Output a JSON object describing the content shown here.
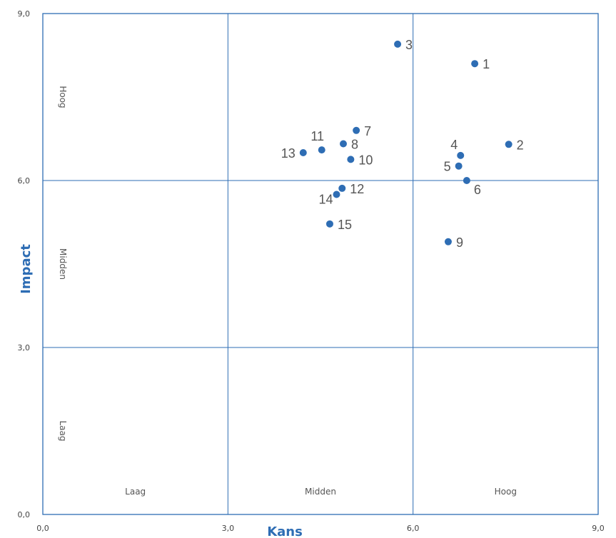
{
  "chart_data": {
    "type": "scatter",
    "xlabel": "Kans",
    "ylabel": "Impact",
    "xlim": [
      0,
      9
    ],
    "ylim": [
      0,
      9
    ],
    "x_ticks": [
      {
        "value": 0,
        "label": "0,0"
      },
      {
        "value": 3,
        "label": "3,0"
      },
      {
        "value": 6,
        "label": "6,0"
      },
      {
        "value": 9,
        "label": "9,0"
      }
    ],
    "y_ticks": [
      {
        "value": 0,
        "label": "0,0"
      },
      {
        "value": 3,
        "label": "3,0"
      },
      {
        "value": 6,
        "label": "6,0"
      },
      {
        "value": 9,
        "label": "9,0"
      }
    ],
    "grid": true,
    "x_zone_labels": [
      {
        "center": 1.5,
        "label": "Laag"
      },
      {
        "center": 4.5,
        "label": "Midden"
      },
      {
        "center": 7.5,
        "label": "Hoog"
      }
    ],
    "y_zone_labels": [
      {
        "center": 1.5,
        "label": "Laag"
      },
      {
        "center": 4.5,
        "label": "Midden"
      },
      {
        "center": 7.5,
        "label": "Hoog"
      }
    ],
    "points": [
      {
        "label": "1",
        "x": 7.0,
        "y": 8.1,
        "label_pos": "right"
      },
      {
        "label": "2",
        "x": 7.55,
        "y": 6.65,
        "label_pos": "right"
      },
      {
        "label": "3",
        "x": 5.75,
        "y": 8.45,
        "label_pos": "right"
      },
      {
        "label": "4",
        "x": 6.77,
        "y": 6.45,
        "label_pos": "above-left"
      },
      {
        "label": "5",
        "x": 6.74,
        "y": 6.26,
        "label_pos": "left"
      },
      {
        "label": "6",
        "x": 6.87,
        "y": 6.0,
        "label_pos": "below-right"
      },
      {
        "label": "7",
        "x": 5.08,
        "y": 6.9,
        "label_pos": "right"
      },
      {
        "label": "8",
        "x": 4.87,
        "y": 6.66,
        "label_pos": "right"
      },
      {
        "label": "9",
        "x": 6.57,
        "y": 4.9,
        "label_pos": "right"
      },
      {
        "label": "10",
        "x": 4.99,
        "y": 6.38,
        "label_pos": "right"
      },
      {
        "label": "11",
        "x": 4.52,
        "y": 6.55,
        "label_pos": "above"
      },
      {
        "label": "12",
        "x": 4.85,
        "y": 5.86,
        "label_pos": "right"
      },
      {
        "label": "13",
        "x": 4.22,
        "y": 6.5,
        "label_pos": "left"
      },
      {
        "label": "14",
        "x": 4.76,
        "y": 5.75,
        "label_pos": "below-left"
      },
      {
        "label": "15",
        "x": 4.65,
        "y": 5.22,
        "label_pos": "right"
      }
    ],
    "colors": {
      "point": "#2e6db4",
      "grid": "#2e6db4",
      "axis_title": "#2e6db4",
      "label": "#555555"
    }
  }
}
